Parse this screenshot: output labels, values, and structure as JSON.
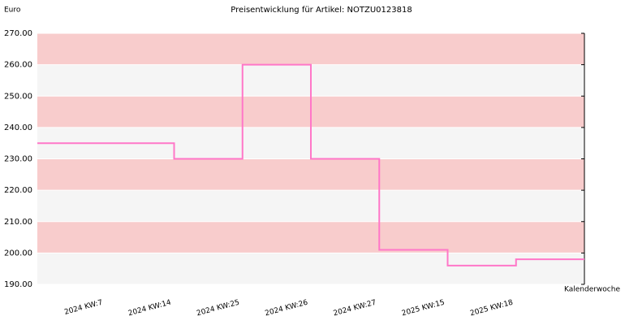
{
  "chart_data": {
    "type": "step",
    "title": "Preisentwicklung für Artikel: NOTZU0123818",
    "y_label": "Euro",
    "x_label": "Kalenderwoche",
    "categories": [
      "2024 KW:7",
      "2024 KW:14",
      "2024 KW:25",
      "2024 KW:26",
      "2024 KW:27",
      "2025 KW:15",
      "2025 KW:18"
    ],
    "values": [
      235,
      230,
      260,
      230,
      201,
      196,
      198
    ],
    "color": "#ff77c8",
    "band_colors": [
      "#f8cccc",
      "#f5f5f5"
    ],
    "ylim": [
      190,
      270
    ],
    "yticks": [
      {
        "value": 190,
        "label": "190.00"
      },
      {
        "value": 200,
        "label": "200.00"
      },
      {
        "value": 210,
        "label": "210.00"
      },
      {
        "value": 220,
        "label": "220.00"
      },
      {
        "value": 230,
        "label": "230.00"
      },
      {
        "value": 240,
        "label": "240.00"
      },
      {
        "value": 250,
        "label": "250.00"
      },
      {
        "value": 260,
        "label": "260.00"
      },
      {
        "value": 270,
        "label": "270.00"
      }
    ]
  }
}
